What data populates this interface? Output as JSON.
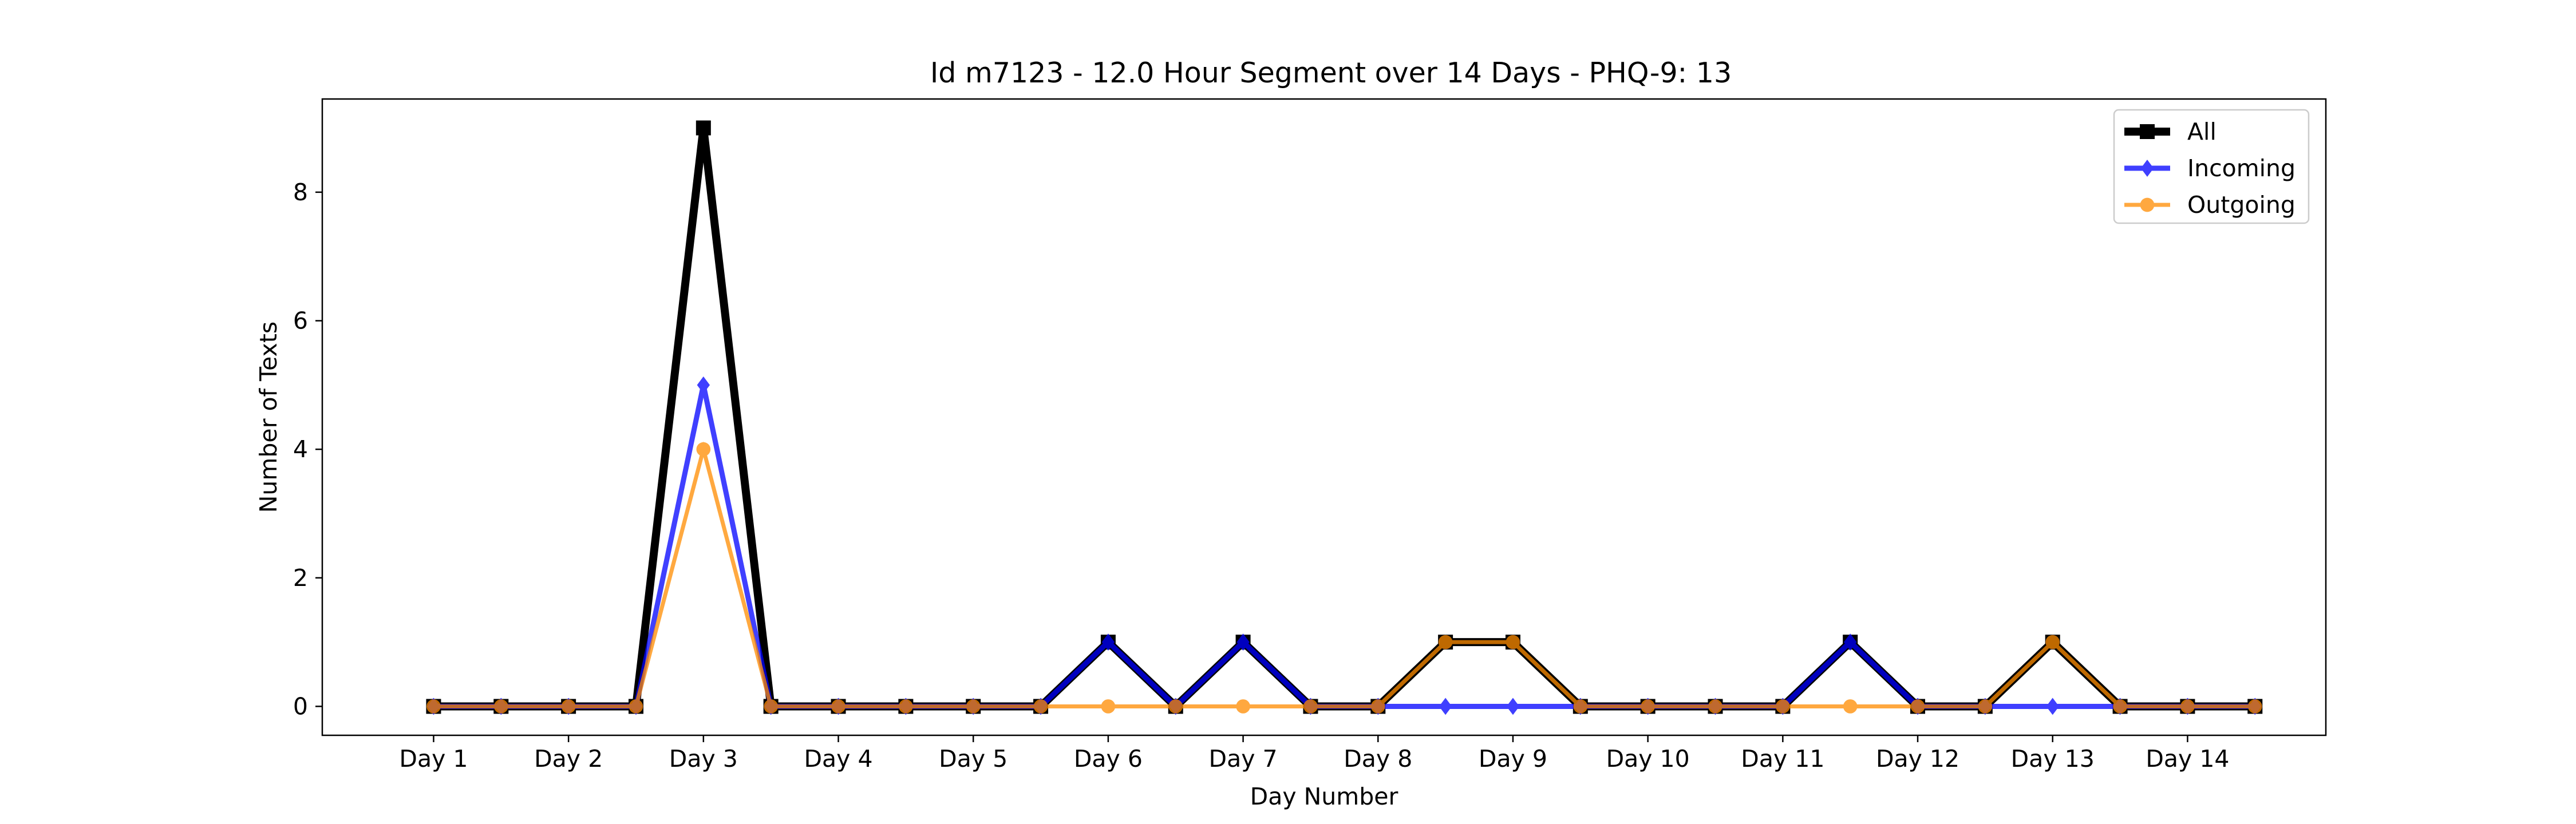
{
  "chart_data": {
    "type": "line",
    "title": "Id m7123 - 12.0 Hour Segment over 14 Days - PHQ-9: 13",
    "xlabel": "Day Number",
    "ylabel": "Number of Texts",
    "x_ticks": [
      "Day 1",
      "Day 2",
      "Day 3",
      "Day 4",
      "Day 5",
      "Day 6",
      "Day 7",
      "Day 8",
      "Day 9",
      "Day 10",
      "Day 11",
      "Day 12",
      "Day 13",
      "Day 14"
    ],
    "y_ticks": [
      "0",
      "2",
      "4",
      "6",
      "8"
    ],
    "ylim": [
      -0.45,
      9.45
    ],
    "xlim": [
      0.175,
      15.025
    ],
    "grid": false,
    "legend_position": "top-right",
    "x": [
      1,
      1.5,
      2,
      2.5,
      3,
      3.5,
      4,
      4.5,
      5,
      5.5,
      6,
      6.5,
      7,
      7.5,
      8,
      8.5,
      9,
      9.5,
      10,
      10.5,
      11,
      11.5,
      12,
      12.5,
      13,
      13.5,
      14,
      14.5
    ],
    "series": [
      {
        "name": "All",
        "color": "#000000",
        "marker": "square",
        "values": [
          0,
          0,
          0,
          0,
          9,
          0,
          0,
          0,
          0,
          0,
          1,
          0,
          1,
          0,
          0,
          1,
          1,
          0,
          0,
          0,
          0,
          1,
          0,
          0,
          1,
          0,
          0,
          0
        ]
      },
      {
        "name": "Incoming",
        "color": "#0000ff",
        "marker": "diamond",
        "values": [
          0,
          0,
          0,
          0,
          5,
          0,
          0,
          0,
          0,
          0,
          1,
          0,
          1,
          0,
          0,
          0,
          0,
          0,
          0,
          0,
          0,
          1,
          0,
          0,
          0,
          0,
          0,
          0
        ]
      },
      {
        "name": "Outgoing",
        "color": "#ff8c00",
        "marker": "circle",
        "values": [
          0,
          0,
          0,
          0,
          4,
          0,
          0,
          0,
          0,
          0,
          0,
          0,
          0,
          0,
          0,
          1,
          1,
          0,
          0,
          0,
          0,
          0,
          0,
          0,
          1,
          0,
          0,
          0
        ]
      }
    ]
  }
}
